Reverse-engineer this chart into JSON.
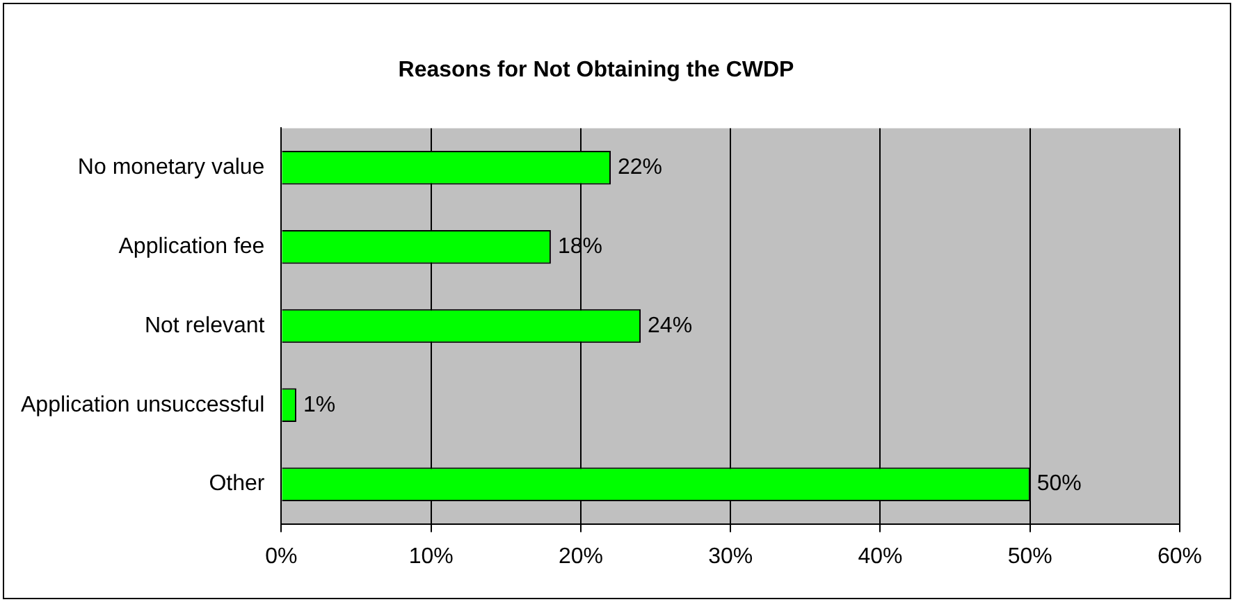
{
  "chart_data": {
    "type": "bar",
    "orientation": "horizontal",
    "title": "Reasons for Not Obtaining the CWDP",
    "categories": [
      "No monetary value",
      "Application fee",
      "Not relevant",
      "Application unsuccessful",
      "Other"
    ],
    "values": [
      22,
      18,
      24,
      1,
      50
    ],
    "color": "#00ff00",
    "value_labels": [
      "22%",
      "18%",
      "24%",
      "1%",
      "50%"
    ],
    "xlim": [
      0,
      60
    ],
    "xticks": [
      {
        "value": 0,
        "label": "0%"
      },
      {
        "value": 10,
        "label": "10%"
      },
      {
        "value": 20,
        "label": "20%"
      },
      {
        "value": 30,
        "label": "30%"
      },
      {
        "value": 40,
        "label": "40%"
      },
      {
        "value": 50,
        "label": "50%"
      },
      {
        "value": 60,
        "label": "60%"
      }
    ],
    "grid": "x",
    "legend": false
  }
}
